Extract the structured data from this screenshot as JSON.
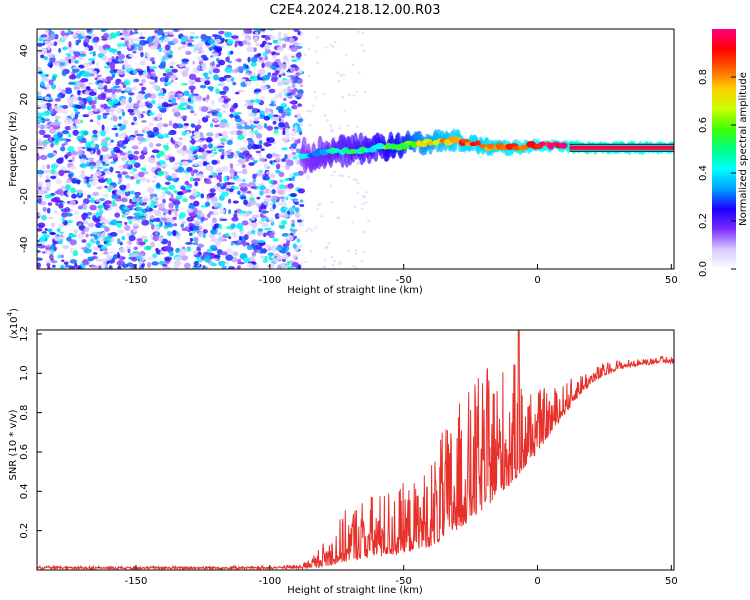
{
  "title": "C2E4.2024.218.12.00.R03",
  "chart_data": [
    {
      "type": "heatmap",
      "xlabel": "Height of straight line (km)",
      "ylabel": "Frequency (Hz)",
      "xlim": [
        -187,
        51
      ],
      "ylim": [
        -50,
        49
      ],
      "xticks": [
        -150,
        -100,
        -50,
        0,
        50
      ],
      "yticks": [
        -40,
        -20,
        0,
        20,
        40
      ],
      "colorbar": {
        "label": "Normalized spectral amplitude",
        "ticks": [
          0.0,
          0.2,
          0.4,
          0.6,
          0.8
        ],
        "range": [
          0,
          1
        ],
        "colors": [
          "#ffffff",
          "#d8c8ff",
          "#7b2cff",
          "#1a00ff",
          "#00a0ff",
          "#00ffff",
          "#00ff80",
          "#40ff00",
          "#c8ff00",
          "#ffd000",
          "#ff6000",
          "#ff0000",
          "#ff0080"
        ]
      },
      "noise_region_x": [
        -187,
        -88
      ],
      "ridge": {
        "x": [
          -88,
          -80,
          -70,
          -60,
          -50,
          -45,
          -40,
          -35,
          -30,
          -25,
          -20,
          -15,
          -10,
          -5,
          0,
          5,
          10,
          20,
          30,
          40,
          51
        ],
        "freq": [
          -3,
          -2,
          -1,
          0,
          1,
          2,
          2.5,
          3,
          3,
          2,
          0.5,
          0,
          0,
          0.5,
          1,
          1,
          0.5,
          0,
          0,
          0,
          0
        ],
        "amp": [
          0.35,
          0.4,
          0.45,
          0.5,
          0.6,
          0.7,
          0.75,
          0.8,
          0.85,
          0.85,
          0.85,
          0.85,
          0.9,
          0.9,
          0.92,
          0.95,
          0.97,
          0.98,
          0.98,
          0.98,
          0.98
        ]
      }
    },
    {
      "type": "line",
      "xlabel": "Height of straight line (km)",
      "ylabel": "SNR (10 * v/v)",
      "multiplier_label": "(x10",
      "multiplier_exp": "4",
      "multiplier_close": ")",
      "xlim": [
        -187,
        51
      ],
      "ylim": [
        0,
        1.22
      ],
      "xticks": [
        -150,
        -100,
        -50,
        0,
        50
      ],
      "yticks": [
        0.2,
        0.4,
        0.6,
        0.8,
        1.0,
        1.2
      ],
      "series": [
        {
          "name": "SNR",
          "color": "#e8302a",
          "x": [
            -187,
            -150,
            -100,
            -90,
            -85,
            -80,
            -75,
            -70,
            -65,
            -60,
            -55,
            -50,
            -45,
            -40,
            -35,
            -30,
            -25,
            -20,
            -15,
            -10,
            -5,
            0,
            5,
            10,
            15,
            20,
            25,
            30,
            35,
            40,
            45,
            51
          ],
          "base": [
            0.01,
            0.01,
            0.01,
            0.012,
            0.02,
            0.04,
            0.07,
            0.1,
            0.12,
            0.13,
            0.14,
            0.15,
            0.17,
            0.2,
            0.26,
            0.32,
            0.38,
            0.44,
            0.5,
            0.55,
            0.6,
            0.66,
            0.74,
            0.82,
            0.9,
            0.96,
            1.0,
            1.03,
            1.04,
            1.05,
            1.06,
            1.06
          ],
          "spread": [
            0.005,
            0.005,
            0.006,
            0.01,
            0.03,
            0.08,
            0.13,
            0.18,
            0.2,
            0.2,
            0.22,
            0.22,
            0.22,
            0.28,
            0.35,
            0.4,
            0.42,
            0.45,
            0.42,
            0.4,
            0.3,
            0.2,
            0.14,
            0.1,
            0.08,
            0.05,
            0.04,
            0.03,
            0.02,
            0.02,
            0.02,
            0.02
          ],
          "peak_x": -7,
          "peak_y": 1.22
        }
      ]
    }
  ]
}
